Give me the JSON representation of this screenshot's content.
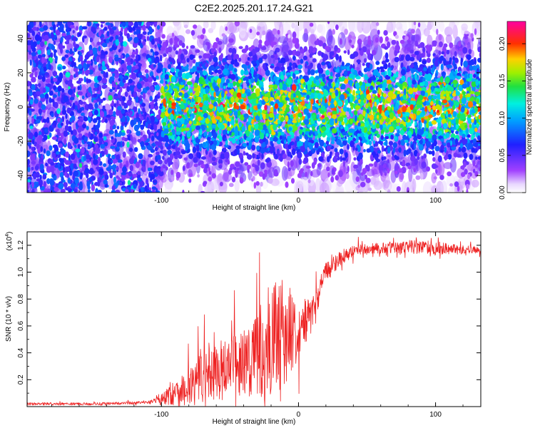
{
  "title": "C2E2.2025.201.17.24.G21",
  "colors": {
    "snr_line": "#ee2222",
    "axis": "#000000",
    "background": "#ffffff"
  },
  "chart_data": [
    {
      "type": "heatmap",
      "xlabel": "Height of straight line (km)",
      "ylabel": "Frequency (Hz)",
      "xlim": [
        -198,
        133
      ],
      "ylim": [
        -50,
        50
      ],
      "xticks": [
        -100,
        0,
        100
      ],
      "xtick_labels": [
        "-100",
        "0",
        "100"
      ],
      "yticks": [
        -40,
        -20,
        0,
        20,
        40
      ],
      "ytick_labels": [
        "-40",
        "-20",
        "0",
        "20",
        "40"
      ],
      "colorbar": {
        "label": "Normalized spectral amplitude",
        "range": [
          0.0,
          0.23
        ],
        "ticks": [
          0.0,
          0.05,
          0.1,
          0.15,
          0.2
        ],
        "tick_labels": [
          "0.00",
          "0.05",
          "0.10",
          "0.15",
          "0.20"
        ],
        "colormap": "rainbow (white-violet-blue-cyan-green-yellow-red-magenta)"
      },
      "description_of_values": "Broadband noise at 0.04-0.09 for heights below -100 km; concentrated signal band 0.08-0.22 between -25 and +25 Hz for heights above -100 km"
    },
    {
      "type": "line",
      "xlabel": "Height of straight line (km)",
      "ylabel": "SNR (10 * v/v)",
      "y_multiplier": "(x10⁴)",
      "y_multiplier_base": "(x10",
      "y_multiplier_exp": "4",
      "xlim": [
        -198,
        133
      ],
      "ylim": [
        0,
        1.3
      ],
      "xticks": [
        -100,
        0,
        100
      ],
      "xtick_labels": [
        "-100",
        "0",
        "100"
      ],
      "yticks": [
        0.2,
        0.4,
        0.6,
        0.8,
        1.0,
        1.2
      ],
      "ytick_labels": [
        "0.2",
        "0.4",
        "0.6",
        "0.8",
        "1.0",
        "1.2"
      ],
      "series": [
        {
          "color": "#ee2222",
          "x": [
            -198,
            -150,
            -110,
            -100,
            -90,
            -80,
            -70,
            -60,
            -50,
            -40,
            -30,
            -20,
            -10,
            0,
            10,
            20,
            30,
            40,
            60,
            80,
            100,
            120,
            133
          ],
          "y": [
            0.02,
            0.02,
            0.03,
            0.06,
            0.1,
            0.15,
            0.22,
            0.26,
            0.3,
            0.33,
            0.4,
            0.5,
            0.55,
            0.58,
            0.7,
            1.0,
            1.1,
            1.16,
            1.18,
            1.19,
            1.18,
            1.17,
            1.16
          ],
          "noise_amplitude": [
            0.01,
            0.01,
            0.01,
            0.05,
            0.1,
            0.16,
            0.2,
            0.22,
            0.22,
            0.26,
            0.36,
            0.42,
            0.4,
            0.22,
            0.12,
            0.08,
            0.06,
            0.04,
            0.04,
            0.05,
            0.05,
            0.03,
            0.03
          ]
        }
      ]
    }
  ]
}
